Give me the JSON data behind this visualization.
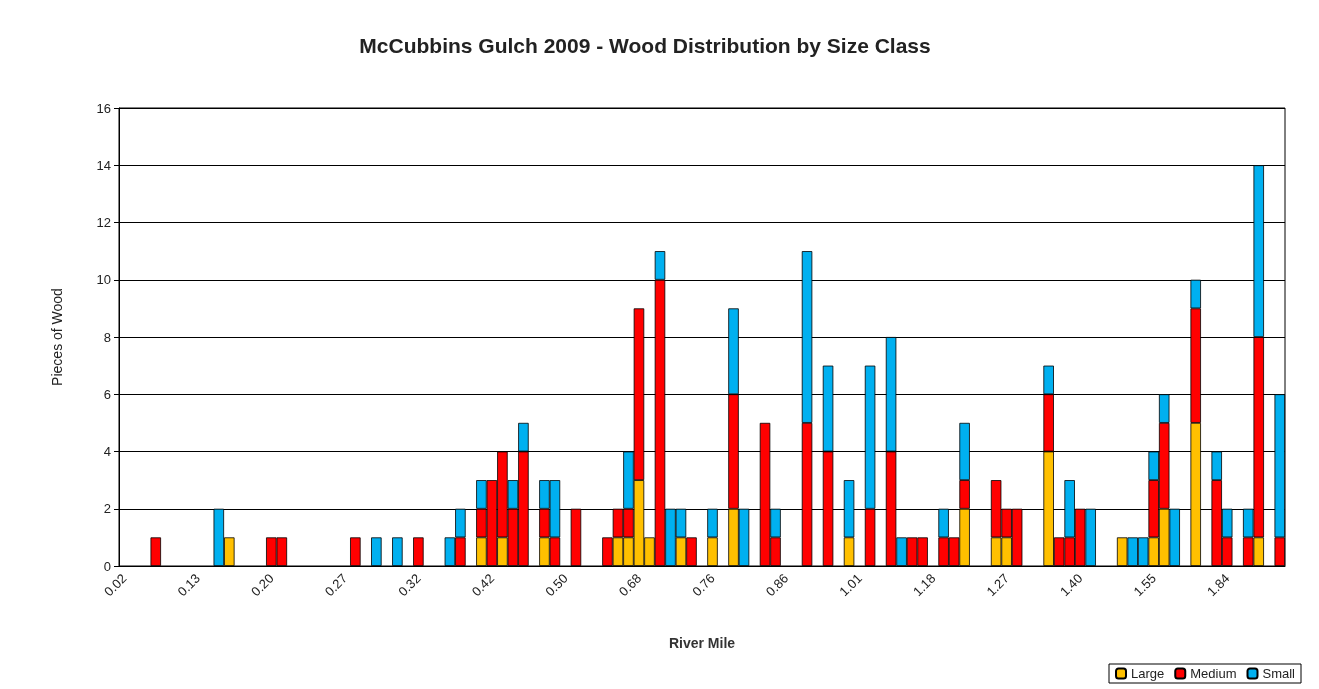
{
  "chart_data": {
    "type": "bar",
    "title": "McCubbins Gulch 2009 - Wood Distribution by Size Class",
    "xlabel": "River Mile",
    "ylabel": "Pieces of Wood",
    "categories": [
      "0.02",
      null,
      null,
      null,
      null,
      null,
      null,
      "0.13",
      null,
      null,
      null,
      null,
      null,
      null,
      "0.20",
      null,
      null,
      null,
      null,
      null,
      null,
      "0.27",
      null,
      null,
      null,
      null,
      null,
      null,
      "0.32",
      null,
      null,
      null,
      null,
      null,
      null,
      "0.42",
      null,
      null,
      null,
      null,
      null,
      null,
      "0.50",
      null,
      null,
      null,
      null,
      null,
      null,
      "0.68",
      null,
      null,
      null,
      null,
      null,
      null,
      "0.76",
      null,
      null,
      null,
      null,
      null,
      null,
      "0.86",
      null,
      null,
      null,
      null,
      null,
      null,
      "1.01",
      null,
      null,
      null,
      null,
      null,
      null,
      "1.18",
      null,
      null,
      null,
      null,
      null,
      null,
      "1.27",
      null,
      null,
      null,
      null,
      null,
      null,
      "1.40",
      null,
      null,
      null,
      null,
      null,
      null,
      "1.55",
      null,
      null,
      null,
      null,
      null,
      null,
      "1.84",
      null,
      null,
      null,
      null,
      null
    ],
    "series": [
      {
        "name": "Large",
        "color": "#ffc000",
        "values": [
          0,
          0,
          0,
          0,
          0,
          0,
          0,
          0,
          0,
          0,
          1,
          0,
          0,
          0,
          0,
          0,
          0,
          0,
          0,
          0,
          0,
          0,
          0,
          0,
          0,
          0,
          0,
          0,
          0,
          0,
          0,
          0,
          0,
          0,
          1,
          0,
          1,
          0,
          0,
          0,
          1,
          0,
          0,
          0,
          0,
          0,
          0,
          1,
          1,
          3,
          1,
          0,
          0,
          1,
          0,
          0,
          1,
          0,
          2,
          0,
          0,
          0,
          0,
          0,
          0,
          0,
          0,
          0,
          0,
          1,
          0,
          0,
          0,
          0,
          0,
          0,
          0,
          0,
          0,
          0,
          2,
          0,
          0,
          1,
          1,
          0,
          0,
          0,
          4,
          0,
          0,
          0,
          0,
          0,
          0,
          1,
          0,
          0,
          1,
          2,
          0,
          0,
          5,
          0,
          0,
          0,
          0,
          0,
          1,
          0,
          0
        ]
      },
      {
        "name": "Medium",
        "color": "#ff0000",
        "values": [
          0,
          0,
          0,
          1,
          0,
          0,
          0,
          0,
          0,
          0,
          0,
          0,
          0,
          0,
          1,
          1,
          0,
          0,
          0,
          0,
          0,
          0,
          1,
          0,
          0,
          0,
          0,
          0,
          1,
          0,
          0,
          0,
          1,
          0,
          1,
          3,
          3,
          2,
          4,
          0,
          1,
          1,
          0,
          2,
          0,
          0,
          1,
          1,
          1,
          6,
          0,
          10,
          0,
          0,
          1,
          0,
          0,
          0,
          4,
          0,
          0,
          5,
          1,
          0,
          0,
          5,
          0,
          4,
          0,
          0,
          0,
          2,
          0,
          4,
          0,
          1,
          1,
          0,
          1,
          1,
          1,
          0,
          0,
          2,
          1,
          2,
          0,
          0,
          2,
          1,
          1,
          2,
          0,
          0,
          0,
          0,
          0,
          0,
          2,
          3,
          0,
          0,
          4,
          0,
          3,
          1,
          0,
          1,
          7,
          0,
          1
        ]
      },
      {
        "name": "Small",
        "color": "#00b0f0",
        "values": [
          0,
          0,
          0,
          0,
          0,
          0,
          0,
          0,
          0,
          2,
          0,
          0,
          0,
          0,
          0,
          0,
          0,
          0,
          0,
          0,
          0,
          0,
          0,
          0,
          1,
          0,
          1,
          0,
          0,
          0,
          0,
          1,
          1,
          0,
          1,
          0,
          0,
          1,
          1,
          0,
          1,
          2,
          0,
          0,
          0,
          0,
          0,
          0,
          2,
          0,
          0,
          1,
          2,
          1,
          0,
          0,
          1,
          0,
          3,
          2,
          0,
          0,
          1,
          0,
          0,
          6,
          0,
          3,
          0,
          2,
          0,
          5,
          0,
          4,
          1,
          0,
          0,
          0,
          1,
          0,
          2,
          0,
          0,
          0,
          0,
          0,
          0,
          0,
          1,
          0,
          2,
          0,
          2,
          0,
          0,
          0,
          1,
          1,
          1,
          1,
          2,
          0,
          1,
          0,
          1,
          1,
          0,
          1,
          6,
          0,
          5
        ]
      }
    ],
    "stacked": true,
    "ylim": [
      0,
      16
    ],
    "yticks": [
      0,
      2,
      4,
      6,
      8,
      10,
      12,
      14,
      16
    ],
    "grid": "y",
    "legend": "bottom right"
  }
}
